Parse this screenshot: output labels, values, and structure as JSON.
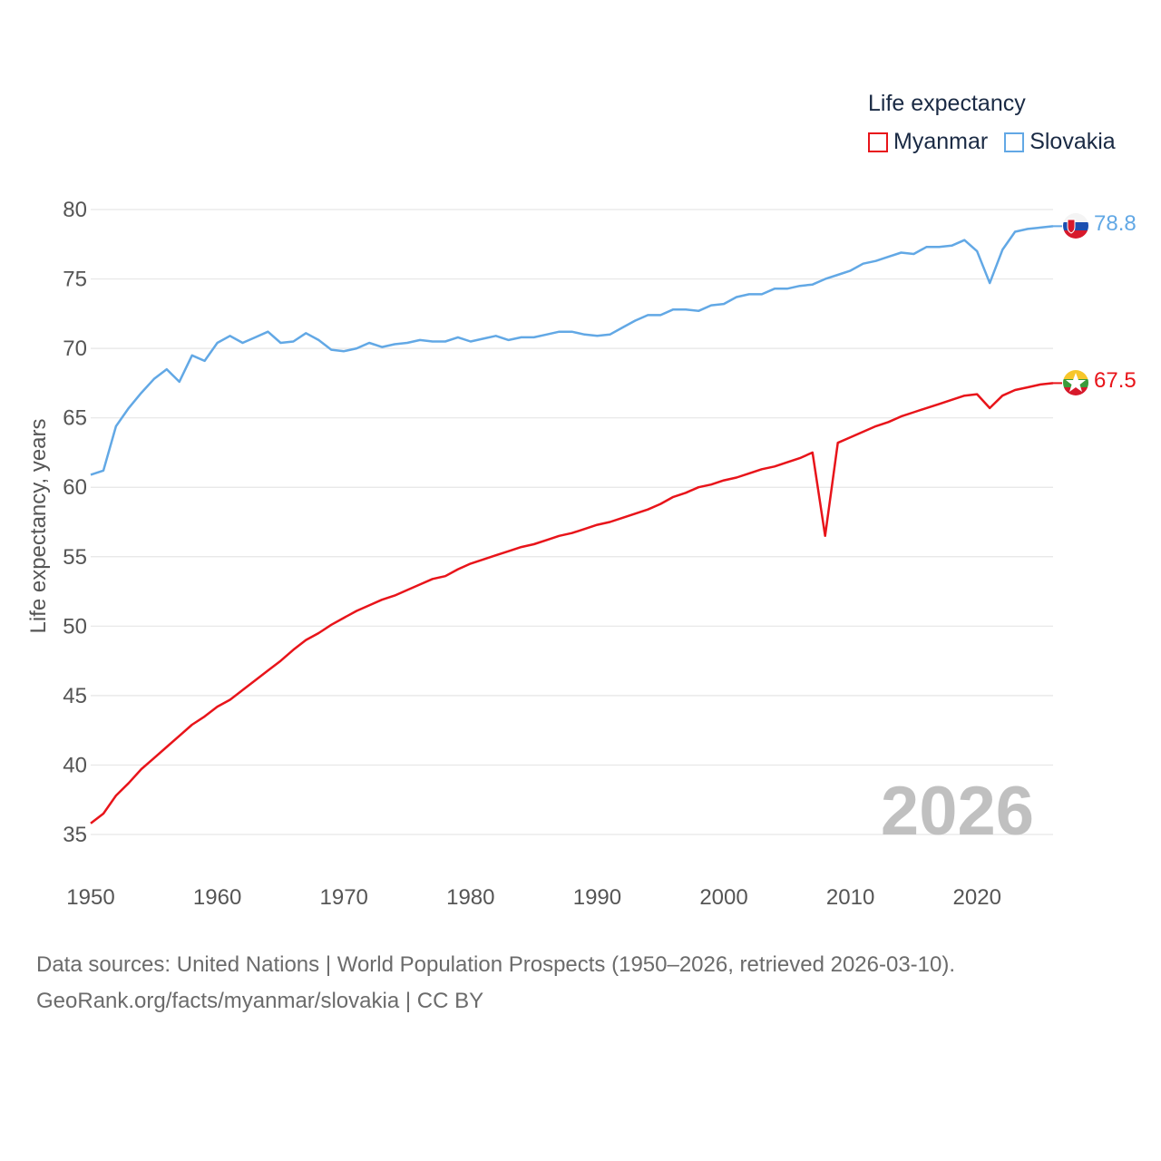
{
  "legend": {
    "title": "Life expectancy",
    "items": [
      {
        "label": "Myanmar",
        "color": "#e8141a"
      },
      {
        "label": "Slovakia",
        "color": "#62a8e5"
      }
    ]
  },
  "year_watermark": "2026",
  "source": {
    "line1": "Data sources: United Nations | World Population Prospects (1950–2026, retrieved 2026-03-10).",
    "line2": "GeoRank.org/facts/myanmar/slovakia | CC BY"
  },
  "chart_data": {
    "type": "line",
    "title": "Life expectancy",
    "xlabel": "",
    "ylabel": "Life expectancy, years",
    "xlim": [
      1950,
      2026
    ],
    "ylim": [
      35,
      80
    ],
    "x_ticks": [
      1950,
      1960,
      1970,
      1980,
      1990,
      2000,
      2010,
      2020
    ],
    "y_ticks": [
      35,
      40,
      45,
      50,
      55,
      60,
      65,
      70,
      75,
      80
    ],
    "grid": true,
    "legend_position": "top-right",
    "series": [
      {
        "name": "Myanmar",
        "color": "#e8141a",
        "end_label": "67.5",
        "points": [
          [
            1950,
            35.8
          ],
          [
            1951,
            36.5
          ],
          [
            1952,
            37.8
          ],
          [
            1953,
            38.7
          ],
          [
            1954,
            39.7
          ],
          [
            1955,
            40.5
          ],
          [
            1956,
            41.3
          ],
          [
            1957,
            42.1
          ],
          [
            1958,
            42.9
          ],
          [
            1959,
            43.5
          ],
          [
            1960,
            44.2
          ],
          [
            1961,
            44.7
          ],
          [
            1962,
            45.4
          ],
          [
            1963,
            46.1
          ],
          [
            1964,
            46.8
          ],
          [
            1965,
            47.5
          ],
          [
            1966,
            48.3
          ],
          [
            1967,
            49.0
          ],
          [
            1968,
            49.5
          ],
          [
            1969,
            50.1
          ],
          [
            1970,
            50.6
          ],
          [
            1971,
            51.1
          ],
          [
            1972,
            51.5
          ],
          [
            1973,
            51.9
          ],
          [
            1974,
            52.2
          ],
          [
            1975,
            52.6
          ],
          [
            1976,
            53.0
          ],
          [
            1977,
            53.4
          ],
          [
            1978,
            53.6
          ],
          [
            1979,
            54.1
          ],
          [
            1980,
            54.5
          ],
          [
            1981,
            54.8
          ],
          [
            1982,
            55.1
          ],
          [
            1983,
            55.4
          ],
          [
            1984,
            55.7
          ],
          [
            1985,
            55.9
          ],
          [
            1986,
            56.2
          ],
          [
            1987,
            56.5
          ],
          [
            1988,
            56.7
          ],
          [
            1989,
            57.0
          ],
          [
            1990,
            57.3
          ],
          [
            1991,
            57.5
          ],
          [
            1992,
            57.8
          ],
          [
            1993,
            58.1
          ],
          [
            1994,
            58.4
          ],
          [
            1995,
            58.8
          ],
          [
            1996,
            59.3
          ],
          [
            1997,
            59.6
          ],
          [
            1998,
            60.0
          ],
          [
            1999,
            60.2
          ],
          [
            2000,
            60.5
          ],
          [
            2001,
            60.7
          ],
          [
            2002,
            61.0
          ],
          [
            2003,
            61.3
          ],
          [
            2004,
            61.5
          ],
          [
            2005,
            61.8
          ],
          [
            2006,
            62.1
          ],
          [
            2007,
            62.5
          ],
          [
            2008,
            56.5
          ],
          [
            2009,
            63.2
          ],
          [
            2010,
            63.6
          ],
          [
            2011,
            64.0
          ],
          [
            2012,
            64.4
          ],
          [
            2013,
            64.7
          ],
          [
            2014,
            65.1
          ],
          [
            2015,
            65.4
          ],
          [
            2016,
            65.7
          ],
          [
            2017,
            66.0
          ],
          [
            2018,
            66.3
          ],
          [
            2019,
            66.6
          ],
          [
            2020,
            66.7
          ],
          [
            2021,
            65.7
          ],
          [
            2022,
            66.6
          ],
          [
            2023,
            67.0
          ],
          [
            2024,
            67.2
          ],
          [
            2025,
            67.4
          ],
          [
            2026,
            67.5
          ]
        ]
      },
      {
        "name": "Slovakia",
        "color": "#62a8e5",
        "end_label": "78.8",
        "points": [
          [
            1950,
            60.9
          ],
          [
            1951,
            61.2
          ],
          [
            1952,
            64.4
          ],
          [
            1953,
            65.7
          ],
          [
            1954,
            66.8
          ],
          [
            1955,
            67.8
          ],
          [
            1956,
            68.5
          ],
          [
            1957,
            67.6
          ],
          [
            1958,
            69.5
          ],
          [
            1959,
            69.1
          ],
          [
            1960,
            70.4
          ],
          [
            1961,
            70.9
          ],
          [
            1962,
            70.4
          ],
          [
            1963,
            70.8
          ],
          [
            1964,
            71.2
          ],
          [
            1965,
            70.4
          ],
          [
            1966,
            70.5
          ],
          [
            1967,
            71.1
          ],
          [
            1968,
            70.6
          ],
          [
            1969,
            69.9
          ],
          [
            1970,
            69.8
          ],
          [
            1971,
            70.0
          ],
          [
            1972,
            70.4
          ],
          [
            1973,
            70.1
          ],
          [
            1974,
            70.3
          ],
          [
            1975,
            70.4
          ],
          [
            1976,
            70.6
          ],
          [
            1977,
            70.5
          ],
          [
            1978,
            70.5
          ],
          [
            1979,
            70.8
          ],
          [
            1980,
            70.5
          ],
          [
            1981,
            70.7
          ],
          [
            1982,
            70.9
          ],
          [
            1983,
            70.6
          ],
          [
            1984,
            70.8
          ],
          [
            1985,
            70.8
          ],
          [
            1986,
            71.0
          ],
          [
            1987,
            71.2
          ],
          [
            1988,
            71.2
          ],
          [
            1989,
            71.0
          ],
          [
            1990,
            70.9
          ],
          [
            1991,
            71.0
          ],
          [
            1992,
            71.5
          ],
          [
            1993,
            72.0
          ],
          [
            1994,
            72.4
          ],
          [
            1995,
            72.4
          ],
          [
            1996,
            72.8
          ],
          [
            1997,
            72.8
          ],
          [
            1998,
            72.7
          ],
          [
            1999,
            73.1
          ],
          [
            2000,
            73.2
          ],
          [
            2001,
            73.7
          ],
          [
            2002,
            73.9
          ],
          [
            2003,
            73.9
          ],
          [
            2004,
            74.3
          ],
          [
            2005,
            74.3
          ],
          [
            2006,
            74.5
          ],
          [
            2007,
            74.6
          ],
          [
            2008,
            75.0
          ],
          [
            2009,
            75.3
          ],
          [
            2010,
            75.6
          ],
          [
            2011,
            76.1
          ],
          [
            2012,
            76.3
          ],
          [
            2013,
            76.6
          ],
          [
            2014,
            76.9
          ],
          [
            2015,
            76.8
          ],
          [
            2016,
            77.3
          ],
          [
            2017,
            77.3
          ],
          [
            2018,
            77.4
          ],
          [
            2019,
            77.8
          ],
          [
            2020,
            77.0
          ],
          [
            2021,
            74.7
          ],
          [
            2022,
            77.1
          ],
          [
            2023,
            78.4
          ],
          [
            2024,
            78.6
          ],
          [
            2025,
            78.7
          ],
          [
            2026,
            78.8
          ]
        ]
      }
    ]
  }
}
